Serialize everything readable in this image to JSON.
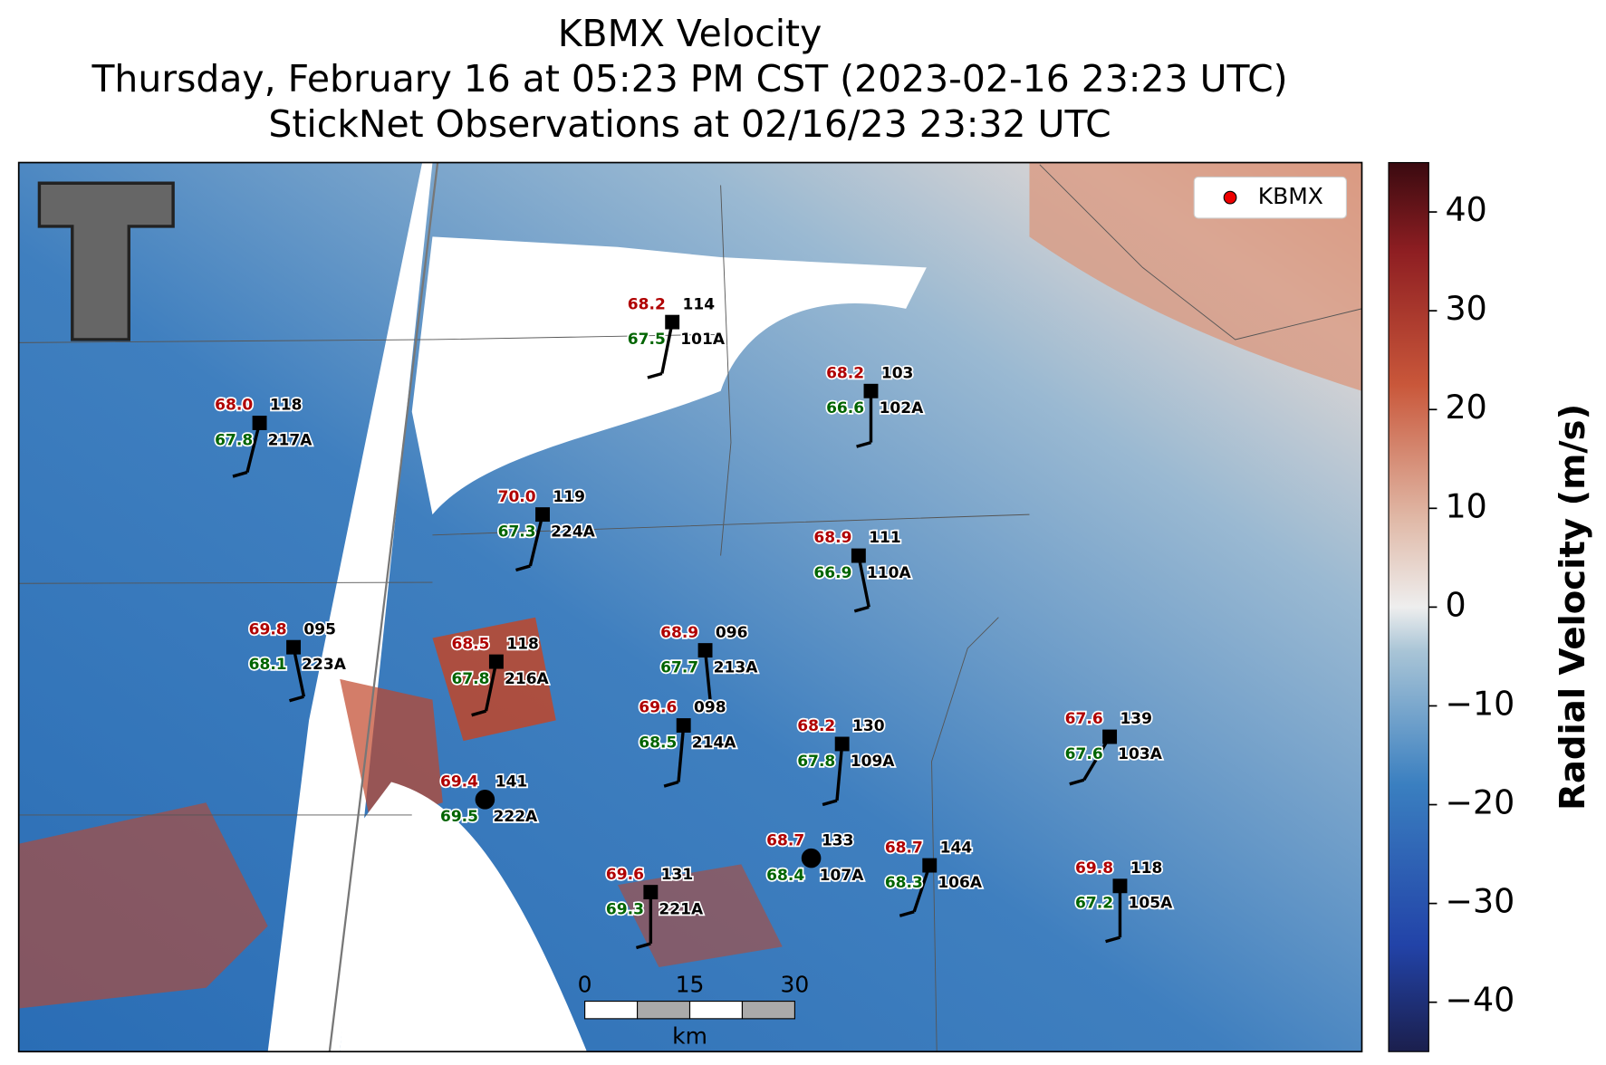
{
  "header": {
    "title": "KBMX Velocity",
    "subtitle": "Thursday, February 16 at 05:23 PM CST (2023-02-16 23:23 UTC)",
    "observations": "StickNet Observations at 02/16/23 23:32 UTC"
  },
  "legend": {
    "label": "KBMX"
  },
  "colorbar": {
    "label": "Radial Velocity (m/s)",
    "lim": [
      -45,
      45
    ],
    "ticks": [
      40,
      30,
      20,
      10,
      0,
      {
        "value": -10,
        "label": "−10"
      },
      {
        "value": -20,
        "label": "−20"
      },
      {
        "value": -30,
        "label": "−30"
      },
      {
        "value": -40,
        "label": "−40"
      }
    ]
  },
  "scale_bar": {
    "ticks": [
      "0",
      "15",
      "30"
    ],
    "unit": "km"
  },
  "stations": [
    {
      "id": "101A",
      "code": "114",
      "temp": "68.2",
      "dew": "67.5"
    },
    {
      "id": "102A",
      "code": "103",
      "temp": "68.2",
      "dew": "66.6"
    },
    {
      "id": "217A",
      "code": "118",
      "temp": "68.0",
      "dew": "67.8"
    },
    {
      "id": "224A",
      "code": "119",
      "temp": "70.0",
      "dew": "67.3"
    },
    {
      "id": "110A",
      "code": "111",
      "temp": "68.9",
      "dew": "66.9"
    },
    {
      "id": "223A",
      "code": "095",
      "temp": "69.8",
      "dew": "68.1"
    },
    {
      "id": "216A",
      "code": "118",
      "temp": "68.5",
      "dew": "67.8"
    },
    {
      "id": "213A",
      "code": "096",
      "temp": "68.9",
      "dew": "67.7"
    },
    {
      "id": "214A",
      "code": "098",
      "temp": "69.6",
      "dew": "68.5"
    },
    {
      "id": "109A",
      "code": "130",
      "temp": "68.2",
      "dew": "67.8"
    },
    {
      "id": "103A",
      "code": "139",
      "temp": "67.6",
      "dew": "67.6"
    },
    {
      "id": "222A",
      "code": "141",
      "temp": "69.4",
      "dew": "69.5"
    },
    {
      "id": "107A",
      "code": "133",
      "temp": "68.7",
      "dew": "68.4"
    },
    {
      "id": "106A",
      "code": "144",
      "temp": "68.7",
      "dew": "68.3"
    },
    {
      "id": "105A",
      "code": "118",
      "temp": "69.8",
      "dew": "67.2"
    },
    {
      "id": "221A",
      "code": "131",
      "temp": "69.6",
      "dew": "69.3"
    }
  ]
}
